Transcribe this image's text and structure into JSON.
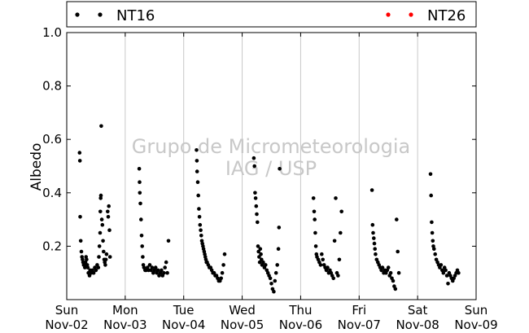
{
  "chart_data": {
    "type": "scatter",
    "ylabel": "Albedo",
    "ylim": [
      0.0,
      1.0
    ],
    "yticks": [
      "",
      "0.2",
      "0.4",
      "0.6",
      "0.8",
      "1.0"
    ],
    "xlim": [
      "2014-11-02",
      "2014-11-09"
    ],
    "xticks": [
      {
        "day": "Sun",
        "date": "Nov-02"
      },
      {
        "day": "Mon",
        "date": "Nov-03"
      },
      {
        "day": "Tue",
        "date": "Nov-04"
      },
      {
        "day": "Wed",
        "date": "Nov-05"
      },
      {
        "day": "Thu",
        "date": "Nov-06"
      },
      {
        "day": "Fri",
        "date": "Nov-07"
      },
      {
        "day": "Sat",
        "date": "Nov-08"
      },
      {
        "day": "Sun",
        "date": "Nov-09"
      }
    ],
    "grid": "vertical",
    "legend": {
      "placement": "top",
      "entries": [
        "NT16",
        "NT26"
      ]
    },
    "watermark": [
      "Grupo de Micrometeorologia",
      "IAG / USP"
    ],
    "series": [
      {
        "name": "NT16",
        "color": "#000000",
        "points": [
          [
            0.22,
            0.55
          ],
          [
            0.225,
            0.52
          ],
          [
            0.23,
            0.31
          ],
          [
            0.24,
            0.22
          ],
          [
            0.25,
            0.18
          ],
          [
            0.26,
            0.16
          ],
          [
            0.27,
            0.15
          ],
          [
            0.28,
            0.14
          ],
          [
            0.29,
            0.13
          ],
          [
            0.3,
            0.13
          ],
          [
            0.31,
            0.12
          ],
          [
            0.32,
            0.14
          ],
          [
            0.33,
            0.16
          ],
          [
            0.34,
            0.15
          ],
          [
            0.35,
            0.13
          ],
          [
            0.36,
            0.12
          ],
          [
            0.37,
            0.1
          ],
          [
            0.38,
            0.1
          ],
          [
            0.39,
            0.09
          ],
          [
            0.4,
            0.11
          ],
          [
            0.42,
            0.1
          ],
          [
            0.44,
            0.11
          ],
          [
            0.46,
            0.1
          ],
          [
            0.48,
            0.12
          ],
          [
            0.5,
            0.11
          ],
          [
            0.52,
            0.13
          ],
          [
            0.54,
            0.12
          ],
          [
            0.55,
            0.16
          ],
          [
            0.56,
            0.2
          ],
          [
            0.57,
            0.25
          ],
          [
            0.575,
            0.33
          ],
          [
            0.58,
            0.38
          ],
          [
            0.585,
            0.39
          ],
          [
            0.59,
            0.65
          ],
          [
            0.6,
            0.3
          ],
          [
            0.61,
            0.28
          ],
          [
            0.62,
            0.22
          ],
          [
            0.63,
            0.18
          ],
          [
            0.64,
            0.15
          ],
          [
            0.65,
            0.14
          ],
          [
            0.66,
            0.13
          ],
          [
            0.67,
            0.15
          ],
          [
            0.68,
            0.17
          ],
          [
            0.7,
            0.33
          ],
          [
            0.71,
            0.31
          ],
          [
            0.72,
            0.35
          ],
          [
            0.73,
            0.26
          ],
          [
            0.74,
            0.16
          ],
          [
            1.24,
            0.49
          ],
          [
            1.245,
            0.44
          ],
          [
            1.25,
            0.4
          ],
          [
            1.26,
            0.36
          ],
          [
            1.27,
            0.3
          ],
          [
            1.28,
            0.24
          ],
          [
            1.29,
            0.2
          ],
          [
            1.3,
            0.16
          ],
          [
            1.31,
            0.13
          ],
          [
            1.32,
            0.12
          ],
          [
            1.34,
            0.11
          ],
          [
            1.36,
            0.11
          ],
          [
            1.38,
            0.12
          ],
          [
            1.4,
            0.11
          ],
          [
            1.42,
            0.13
          ],
          [
            1.44,
            0.11
          ],
          [
            1.46,
            0.12
          ],
          [
            1.48,
            0.1
          ],
          [
            1.5,
            0.11
          ],
          [
            1.52,
            0.12
          ],
          [
            1.54,
            0.1
          ],
          [
            1.56,
            0.11
          ],
          [
            1.58,
            0.09
          ],
          [
            1.6,
            0.1
          ],
          [
            1.62,
            0.11
          ],
          [
            1.64,
            0.09
          ],
          [
            1.66,
            0.1
          ],
          [
            1.68,
            0.12
          ],
          [
            1.7,
            0.14
          ],
          [
            1.72,
            0.1
          ],
          [
            1.74,
            0.22
          ],
          [
            2.22,
            0.56
          ],
          [
            2.225,
            0.52
          ],
          [
            2.23,
            0.48
          ],
          [
            2.24,
            0.44
          ],
          [
            2.25,
            0.39
          ],
          [
            2.26,
            0.34
          ],
          [
            2.27,
            0.31
          ],
          [
            2.28,
            0.28
          ],
          [
            2.29,
            0.26
          ],
          [
            2.3,
            0.24
          ],
          [
            2.31,
            0.22
          ],
          [
            2.32,
            0.21
          ],
          [
            2.33,
            0.2
          ],
          [
            2.34,
            0.19
          ],
          [
            2.35,
            0.18
          ],
          [
            2.36,
            0.17
          ],
          [
            2.37,
            0.16
          ],
          [
            2.38,
            0.15
          ],
          [
            2.39,
            0.14
          ],
          [
            2.4,
            0.14
          ],
          [
            2.42,
            0.13
          ],
          [
            2.44,
            0.12
          ],
          [
            2.46,
            0.12
          ],
          [
            2.48,
            0.11
          ],
          [
            2.5,
            0.1
          ],
          [
            2.52,
            0.1
          ],
          [
            2.54,
            0.09
          ],
          [
            2.56,
            0.09
          ],
          [
            2.58,
            0.08
          ],
          [
            2.6,
            0.07
          ],
          [
            2.62,
            0.07
          ],
          [
            2.64,
            0.08
          ],
          [
            2.66,
            0.1
          ],
          [
            2.68,
            0.13
          ],
          [
            2.7,
            0.17
          ],
          [
            3.2,
            0.53
          ],
          [
            3.21,
            0.5
          ],
          [
            3.22,
            0.4
          ],
          [
            3.23,
            0.38
          ],
          [
            3.24,
            0.35
          ],
          [
            3.25,
            0.32
          ],
          [
            3.26,
            0.29
          ],
          [
            3.27,
            0.2
          ],
          [
            3.28,
            0.18
          ],
          [
            3.29,
            0.16
          ],
          [
            3.3,
            0.14
          ],
          [
            3.31,
            0.19
          ],
          [
            3.32,
            0.17
          ],
          [
            3.33,
            0.15
          ],
          [
            3.34,
            0.13
          ],
          [
            3.36,
            0.14
          ],
          [
            3.38,
            0.12
          ],
          [
            3.4,
            0.13
          ],
          [
            3.42,
            0.11
          ],
          [
            3.44,
            0.1
          ],
          [
            3.46,
            0.09
          ],
          [
            3.48,
            0.08
          ],
          [
            3.5,
            0.06
          ],
          [
            3.52,
            0.04
          ],
          [
            3.54,
            0.03
          ],
          [
            3.56,
            0.07
          ],
          [
            3.58,
            0.1
          ],
          [
            3.6,
            0.13
          ],
          [
            3.62,
            0.19
          ],
          [
            3.63,
            0.27
          ],
          [
            3.64,
            0.49
          ],
          [
            4.22,
            0.38
          ],
          [
            4.23,
            0.33
          ],
          [
            4.24,
            0.3
          ],
          [
            4.25,
            0.25
          ],
          [
            4.26,
            0.2
          ],
          [
            4.27,
            0.17
          ],
          [
            4.28,
            0.16
          ],
          [
            4.3,
            0.15
          ],
          [
            4.32,
            0.14
          ],
          [
            4.34,
            0.13
          ],
          [
            4.36,
            0.17
          ],
          [
            4.38,
            0.15
          ],
          [
            4.4,
            0.13
          ],
          [
            4.42,
            0.12
          ],
          [
            4.44,
            0.11
          ],
          [
            4.46,
            0.12
          ],
          [
            4.48,
            0.1
          ],
          [
            4.5,
            0.11
          ],
          [
            4.52,
            0.1
          ],
          [
            4.54,
            0.09
          ],
          [
            4.56,
            0.08
          ],
          [
            4.58,
            0.22
          ],
          [
            4.6,
            0.38
          ],
          [
            4.62,
            0.1
          ],
          [
            4.64,
            0.09
          ],
          [
            4.66,
            0.15
          ],
          [
            4.68,
            0.25
          ],
          [
            4.7,
            0.33
          ],
          [
            5.22,
            0.41
          ],
          [
            5.23,
            0.28
          ],
          [
            5.24,
            0.25
          ],
          [
            5.25,
            0.23
          ],
          [
            5.26,
            0.21
          ],
          [
            5.27,
            0.19
          ],
          [
            5.28,
            0.17
          ],
          [
            5.3,
            0.15
          ],
          [
            5.32,
            0.14
          ],
          [
            5.34,
            0.13
          ],
          [
            5.36,
            0.12
          ],
          [
            5.38,
            0.11
          ],
          [
            5.4,
            0.12
          ],
          [
            5.42,
            0.1
          ],
          [
            5.44,
            0.11
          ],
          [
            5.46,
            0.1
          ],
          [
            5.48,
            0.11
          ],
          [
            5.5,
            0.12
          ],
          [
            5.52,
            0.09
          ],
          [
            5.54,
            0.1
          ],
          [
            5.56,
            0.08
          ],
          [
            5.58,
            0.07
          ],
          [
            5.6,
            0.05
          ],
          [
            5.62,
            0.04
          ],
          [
            5.64,
            0.3
          ],
          [
            5.66,
            0.18
          ],
          [
            5.68,
            0.1
          ],
          [
            6.22,
            0.47
          ],
          [
            6.23,
            0.39
          ],
          [
            6.24,
            0.29
          ],
          [
            6.25,
            0.25
          ],
          [
            6.26,
            0.22
          ],
          [
            6.27,
            0.2
          ],
          [
            6.28,
            0.19
          ],
          [
            6.3,
            0.17
          ],
          [
            6.32,
            0.15
          ],
          [
            6.34,
            0.14
          ],
          [
            6.36,
            0.13
          ],
          [
            6.38,
            0.12
          ],
          [
            6.4,
            0.13
          ],
          [
            6.42,
            0.11
          ],
          [
            6.44,
            0.1
          ],
          [
            6.46,
            0.12
          ],
          [
            6.48,
            0.11
          ],
          [
            6.5,
            0.09
          ],
          [
            6.52,
            0.06
          ],
          [
            6.54,
            0.1
          ],
          [
            6.56,
            0.09
          ],
          [
            6.58,
            0.08
          ],
          [
            6.6,
            0.07
          ],
          [
            6.62,
            0.08
          ],
          [
            6.64,
            0.09
          ],
          [
            6.66,
            0.1
          ],
          [
            6.68,
            0.11
          ],
          [
            6.7,
            0.1
          ]
        ]
      },
      {
        "name": "NT26",
        "color": "#ff0000",
        "points": []
      }
    ]
  }
}
